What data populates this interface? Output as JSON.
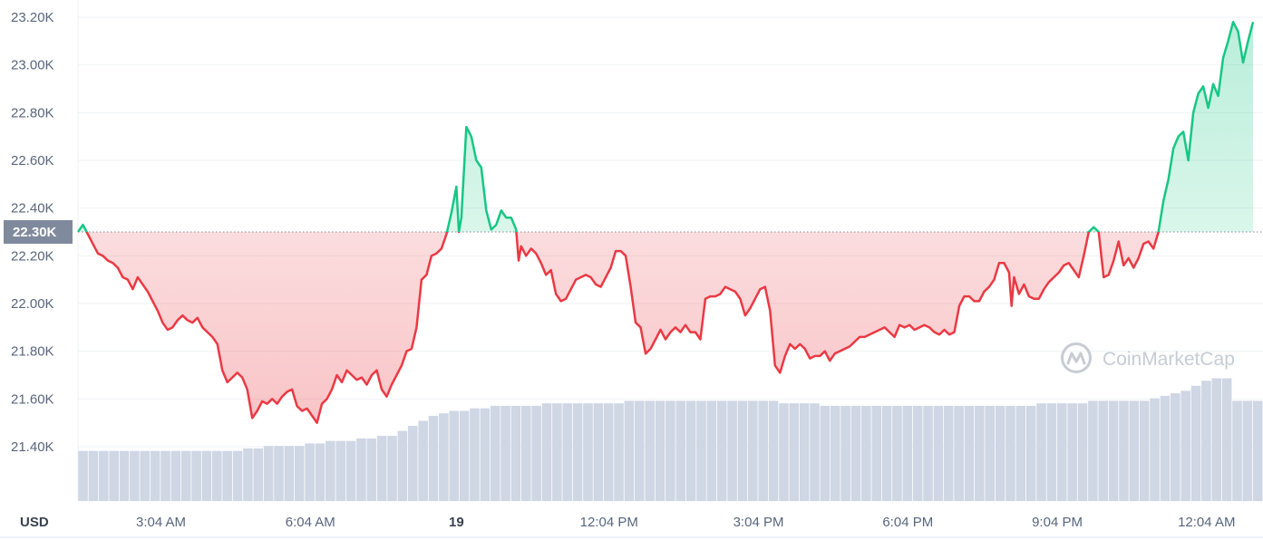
{
  "chart_data": {
    "type": "area",
    "title": "",
    "currency_label": "USD",
    "reference_price": 22300,
    "reference_label": "22.30K",
    "ylim": [
      21200,
      23220
    ],
    "y_ticks": [
      {
        "value": 23200,
        "label": "23.20K"
      },
      {
        "value": 23000,
        "label": "23.00K"
      },
      {
        "value": 22800,
        "label": "22.80K"
      },
      {
        "value": 22600,
        "label": "22.60K"
      },
      {
        "value": 22400,
        "label": "22.40K"
      },
      {
        "value": 22200,
        "label": "22.20K"
      },
      {
        "value": 22000,
        "label": "22.00K"
      },
      {
        "value": 21800,
        "label": "21.80K"
      },
      {
        "value": 21600,
        "label": "21.60K"
      },
      {
        "value": 21400,
        "label": "21.40K"
      }
    ],
    "x_range_hours": [
      1.4,
      25.2
    ],
    "x_ticks": [
      {
        "hour": 3.067,
        "label": "3:04 AM",
        "bold": false
      },
      {
        "hour": 6.067,
        "label": "6:04 AM",
        "bold": false
      },
      {
        "hour": 9.0,
        "label": "19",
        "bold": true
      },
      {
        "hour": 12.067,
        "label": "12:04 PM",
        "bold": false
      },
      {
        "hour": 15.067,
        "label": "3:04 PM",
        "bold": false
      },
      {
        "hour": 18.067,
        "label": "6:04 PM",
        "bold": false
      },
      {
        "hour": 21.067,
        "label": "9:04 PM",
        "bold": false
      },
      {
        "hour": 24.067,
        "label": "12:04 AM",
        "bold": false
      }
    ],
    "colors": {
      "up": "#16c784",
      "down": "#ea3943",
      "volume": "#cfd6e4",
      "grid": "#eff2f5",
      "reference_badge": "#808a9d"
    },
    "series": [
      {
        "values": [
          [
            1.4,
            22300
          ],
          [
            1.5,
            22330
          ],
          [
            1.6,
            22290
          ],
          [
            1.7,
            22250
          ],
          [
            1.8,
            22210
          ],
          [
            1.9,
            22200
          ],
          [
            2.0,
            22180
          ],
          [
            2.1,
            22170
          ],
          [
            2.2,
            22150
          ],
          [
            2.3,
            22110
          ],
          [
            2.4,
            22100
          ],
          [
            2.5,
            22060
          ],
          [
            2.6,
            22110
          ],
          [
            2.7,
            22080
          ],
          [
            2.8,
            22050
          ],
          [
            2.9,
            22010
          ],
          [
            3.0,
            21970
          ],
          [
            3.1,
            21920
          ],
          [
            3.2,
            21890
          ],
          [
            3.3,
            21900
          ],
          [
            3.4,
            21930
          ],
          [
            3.5,
            21950
          ],
          [
            3.6,
            21930
          ],
          [
            3.7,
            21920
          ],
          [
            3.8,
            21940
          ],
          [
            3.9,
            21900
          ],
          [
            4.0,
            21880
          ],
          [
            4.1,
            21860
          ],
          [
            4.2,
            21830
          ],
          [
            4.3,
            21720
          ],
          [
            4.4,
            21670
          ],
          [
            4.5,
            21690
          ],
          [
            4.6,
            21710
          ],
          [
            4.7,
            21690
          ],
          [
            4.8,
            21640
          ],
          [
            4.9,
            21520
          ],
          [
            5.0,
            21550
          ],
          [
            5.1,
            21590
          ],
          [
            5.2,
            21580
          ],
          [
            5.3,
            21600
          ],
          [
            5.4,
            21580
          ],
          [
            5.5,
            21610
          ],
          [
            5.6,
            21630
          ],
          [
            5.7,
            21640
          ],
          [
            5.8,
            21570
          ],
          [
            5.9,
            21550
          ],
          [
            6.0,
            21560
          ],
          [
            6.1,
            21530
          ],
          [
            6.2,
            21500
          ],
          [
            6.3,
            21580
          ],
          [
            6.4,
            21600
          ],
          [
            6.5,
            21640
          ],
          [
            6.6,
            21700
          ],
          [
            6.7,
            21670
          ],
          [
            6.8,
            21720
          ],
          [
            6.9,
            21700
          ],
          [
            7.0,
            21680
          ],
          [
            7.1,
            21690
          ],
          [
            7.2,
            21660
          ],
          [
            7.3,
            21700
          ],
          [
            7.4,
            21720
          ],
          [
            7.5,
            21640
          ],
          [
            7.6,
            21610
          ],
          [
            7.7,
            21660
          ],
          [
            7.8,
            21700
          ],
          [
            7.9,
            21740
          ],
          [
            8.0,
            21800
          ],
          [
            8.1,
            21810
          ],
          [
            8.2,
            21900
          ],
          [
            8.3,
            22100
          ],
          [
            8.4,
            22120
          ],
          [
            8.5,
            22200
          ],
          [
            8.6,
            22210
          ],
          [
            8.7,
            22230
          ],
          [
            8.8,
            22290
          ],
          [
            8.9,
            22380
          ],
          [
            9.0,
            22490
          ],
          [
            9.05,
            22300
          ],
          [
            9.1,
            22360
          ],
          [
            9.2,
            22740
          ],
          [
            9.3,
            22700
          ],
          [
            9.4,
            22600
          ],
          [
            9.5,
            22570
          ],
          [
            9.6,
            22390
          ],
          [
            9.7,
            22310
          ],
          [
            9.8,
            22330
          ],
          [
            9.9,
            22390
          ],
          [
            10.0,
            22360
          ],
          [
            10.1,
            22360
          ],
          [
            10.2,
            22310
          ],
          [
            10.25,
            22180
          ],
          [
            10.3,
            22240
          ],
          [
            10.4,
            22200
          ],
          [
            10.5,
            22230
          ],
          [
            10.6,
            22210
          ],
          [
            10.7,
            22170
          ],
          [
            10.8,
            22120
          ],
          [
            10.9,
            22140
          ],
          [
            11.0,
            22040
          ],
          [
            11.1,
            22010
          ],
          [
            11.2,
            22020
          ],
          [
            11.3,
            22060
          ],
          [
            11.4,
            22100
          ],
          [
            11.5,
            22110
          ],
          [
            11.6,
            22120
          ],
          [
            11.7,
            22110
          ],
          [
            11.8,
            22080
          ],
          [
            11.9,
            22070
          ],
          [
            12.0,
            22110
          ],
          [
            12.1,
            22150
          ],
          [
            12.2,
            22220
          ],
          [
            12.3,
            22220
          ],
          [
            12.4,
            22200
          ],
          [
            12.5,
            22070
          ],
          [
            12.6,
            21920
          ],
          [
            12.7,
            21900
          ],
          [
            12.8,
            21790
          ],
          [
            12.9,
            21810
          ],
          [
            13.0,
            21850
          ],
          [
            13.1,
            21890
          ],
          [
            13.2,
            21850
          ],
          [
            13.3,
            21880
          ],
          [
            13.4,
            21900
          ],
          [
            13.5,
            21880
          ],
          [
            13.6,
            21910
          ],
          [
            13.7,
            21880
          ],
          [
            13.8,
            21880
          ],
          [
            13.9,
            21850
          ],
          [
            14.0,
            22020
          ],
          [
            14.1,
            22030
          ],
          [
            14.2,
            22030
          ],
          [
            14.3,
            22040
          ],
          [
            14.4,
            22070
          ],
          [
            14.5,
            22060
          ],
          [
            14.6,
            22050
          ],
          [
            14.7,
            22020
          ],
          [
            14.8,
            21950
          ],
          [
            14.9,
            21980
          ],
          [
            15.0,
            22020
          ],
          [
            15.1,
            22060
          ],
          [
            15.2,
            22070
          ],
          [
            15.3,
            21970
          ],
          [
            15.4,
            21740
          ],
          [
            15.5,
            21710
          ],
          [
            15.6,
            21780
          ],
          [
            15.7,
            21830
          ],
          [
            15.8,
            21810
          ],
          [
            15.9,
            21830
          ],
          [
            16.0,
            21810
          ],
          [
            16.1,
            21770
          ],
          [
            16.2,
            21780
          ],
          [
            16.3,
            21780
          ],
          [
            16.4,
            21800
          ],
          [
            16.5,
            21760
          ],
          [
            16.6,
            21790
          ],
          [
            16.7,
            21800
          ],
          [
            16.8,
            21810
          ],
          [
            16.9,
            21820
          ],
          [
            17.0,
            21840
          ],
          [
            17.1,
            21860
          ],
          [
            17.2,
            21860
          ],
          [
            17.3,
            21870
          ],
          [
            17.4,
            21880
          ],
          [
            17.5,
            21890
          ],
          [
            17.6,
            21900
          ],
          [
            17.7,
            21880
          ],
          [
            17.8,
            21860
          ],
          [
            17.9,
            21910
          ],
          [
            18.0,
            21900
          ],
          [
            18.1,
            21910
          ],
          [
            18.2,
            21890
          ],
          [
            18.3,
            21900
          ],
          [
            18.4,
            21910
          ],
          [
            18.5,
            21900
          ],
          [
            18.6,
            21880
          ],
          [
            18.7,
            21870
          ],
          [
            18.8,
            21890
          ],
          [
            18.9,
            21870
          ],
          [
            19.0,
            21880
          ],
          [
            19.1,
            21990
          ],
          [
            19.2,
            22030
          ],
          [
            19.3,
            22030
          ],
          [
            19.4,
            22010
          ],
          [
            19.5,
            22010
          ],
          [
            19.6,
            22050
          ],
          [
            19.7,
            22070
          ],
          [
            19.8,
            22100
          ],
          [
            19.9,
            22170
          ],
          [
            20.0,
            22170
          ],
          [
            20.1,
            22130
          ],
          [
            20.15,
            21990
          ],
          [
            20.2,
            22110
          ],
          [
            20.3,
            22040
          ],
          [
            20.4,
            22080
          ],
          [
            20.5,
            22030
          ],
          [
            20.6,
            22020
          ],
          [
            20.7,
            22020
          ],
          [
            20.8,
            22060
          ],
          [
            20.9,
            22090
          ],
          [
            21.0,
            22110
          ],
          [
            21.1,
            22130
          ],
          [
            21.2,
            22160
          ],
          [
            21.3,
            22170
          ],
          [
            21.4,
            22140
          ],
          [
            21.5,
            22110
          ],
          [
            21.6,
            22200
          ],
          [
            21.7,
            22300
          ],
          [
            21.8,
            22320
          ],
          [
            21.9,
            22300
          ],
          [
            22.0,
            22110
          ],
          [
            22.1,
            22120
          ],
          [
            22.2,
            22180
          ],
          [
            22.3,
            22260
          ],
          [
            22.4,
            22160
          ],
          [
            22.5,
            22190
          ],
          [
            22.6,
            22150
          ],
          [
            22.7,
            22190
          ],
          [
            22.8,
            22250
          ],
          [
            22.9,
            22260
          ],
          [
            23.0,
            22230
          ],
          [
            23.1,
            22300
          ],
          [
            23.2,
            22430
          ],
          [
            23.3,
            22520
          ],
          [
            23.4,
            22650
          ],
          [
            23.5,
            22700
          ],
          [
            23.6,
            22720
          ],
          [
            23.7,
            22600
          ],
          [
            23.8,
            22800
          ],
          [
            23.9,
            22880
          ],
          [
            24.0,
            22910
          ],
          [
            24.1,
            22820
          ],
          [
            24.2,
            22920
          ],
          [
            24.3,
            22870
          ],
          [
            24.4,
            23030
          ],
          [
            24.5,
            23100
          ],
          [
            24.6,
            23180
          ],
          [
            24.7,
            23140
          ],
          [
            24.8,
            23010
          ],
          [
            24.9,
            23100
          ],
          [
            25.0,
            23180
          ]
        ]
      }
    ],
    "volume": {
      "relative_values": [
        0.1,
        0.1,
        0.1,
        0.1,
        0.1,
        0.1,
        0.1,
        0.1,
        0.1,
        0.1,
        0.1,
        0.1,
        0.1,
        0.1,
        0.1,
        0.1,
        0.105,
        0.105,
        0.11,
        0.11,
        0.11,
        0.11,
        0.115,
        0.115,
        0.12,
        0.12,
        0.12,
        0.125,
        0.125,
        0.13,
        0.13,
        0.14,
        0.15,
        0.16,
        0.17,
        0.175,
        0.18,
        0.18,
        0.185,
        0.185,
        0.19,
        0.19,
        0.19,
        0.19,
        0.19,
        0.195,
        0.195,
        0.195,
        0.195,
        0.195,
        0.195,
        0.195,
        0.195,
        0.2,
        0.2,
        0.2,
        0.2,
        0.2,
        0.2,
        0.2,
        0.2,
        0.2,
        0.2,
        0.2,
        0.2,
        0.2,
        0.2,
        0.2,
        0.195,
        0.195,
        0.195,
        0.195,
        0.19,
        0.19,
        0.19,
        0.19,
        0.19,
        0.19,
        0.19,
        0.19,
        0.19,
        0.19,
        0.19,
        0.19,
        0.19,
        0.19,
        0.19,
        0.19,
        0.19,
        0.19,
        0.19,
        0.19,
        0.19,
        0.195,
        0.195,
        0.195,
        0.195,
        0.195,
        0.2,
        0.2,
        0.2,
        0.2,
        0.2,
        0.2,
        0.205,
        0.21,
        0.215,
        0.22,
        0.23,
        0.24,
        0.245,
        0.245,
        0.2,
        0.2,
        0.2
      ],
      "max": 1
    }
  },
  "watermark": {
    "text": "CoinMarketCap",
    "icon": "coinmarketcap-logo-icon"
  }
}
